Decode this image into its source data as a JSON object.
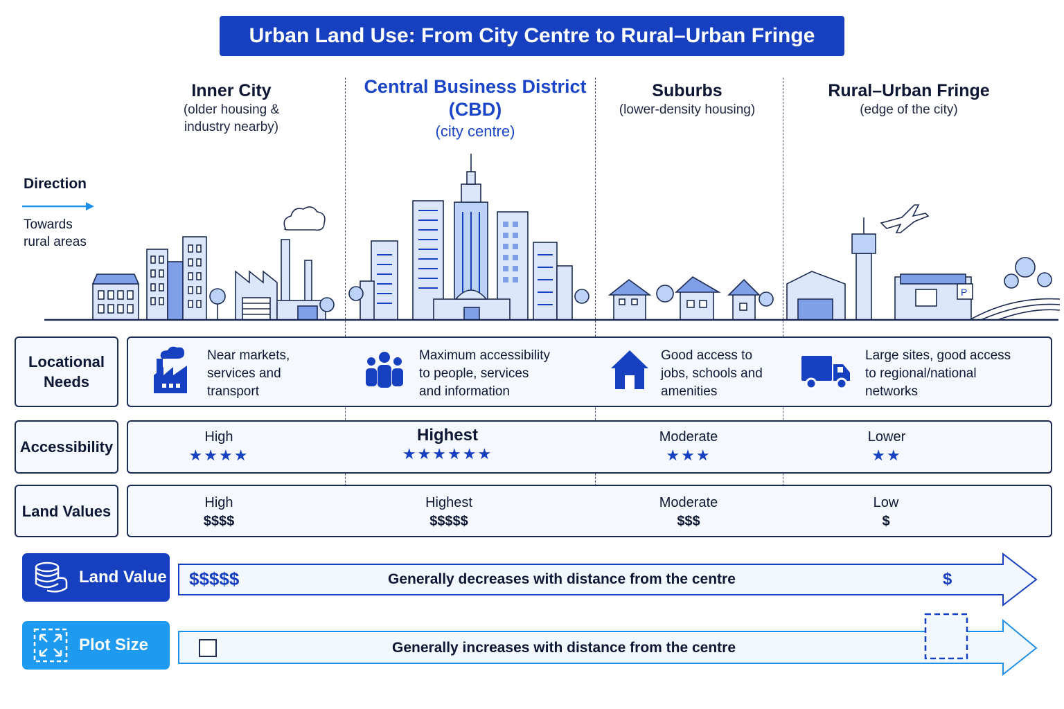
{
  "title": "Urban Land Use: From City Centre to Rural–Urban Fringe",
  "direction": {
    "label": "Direction",
    "note_line1": "Towards",
    "note_line2": "rural areas"
  },
  "zones": [
    {
      "name": "Inner City",
      "sub_line1": "(older housing &",
      "sub_line2": "industry nearby)"
    },
    {
      "name_line1": "Central Business District",
      "name_line2": "(CBD)",
      "sub": "(city centre)"
    },
    {
      "name": "Suburbs",
      "sub": "(lower-density housing)"
    },
    {
      "name": "Rural–Urban Fringe",
      "sub": "(edge of the city)"
    }
  ],
  "rows": {
    "locational_needs": {
      "label_line1": "Locational",
      "label_line2": "Needs",
      "cells": [
        {
          "icon": "factory-icon",
          "lines": [
            "Near markets,",
            "services and",
            "transport"
          ]
        },
        {
          "icon": "people-icon",
          "lines": [
            "Maximum accessibility",
            "to people, services",
            "and information"
          ]
        },
        {
          "icon": "house-icon",
          "lines": [
            "Good access to",
            "jobs, schools and",
            "amenities"
          ]
        },
        {
          "icon": "truck-icon",
          "lines": [
            "Large sites, good access",
            "to regional/national",
            "networks"
          ]
        }
      ]
    },
    "accessibility": {
      "label": "Accessibility",
      "cells": [
        {
          "level": "High",
          "stars": 4,
          "stars_text": "★★★★"
        },
        {
          "level": "Highest",
          "stars": 6,
          "stars_text": "★★★★★★"
        },
        {
          "level": "Moderate",
          "stars": 3,
          "stars_text": "★★★"
        },
        {
          "level": "Lower",
          "stars": 2,
          "stars_text": "★★"
        }
      ]
    },
    "land_values": {
      "label": "Land Values",
      "cells": [
        {
          "level": "High",
          "dollars": "$$$$"
        },
        {
          "level": "Highest",
          "dollars": "$$$$$"
        },
        {
          "level": "Moderate",
          "dollars": "$$$"
        },
        {
          "level": "Low",
          "dollars": "$"
        }
      ]
    }
  },
  "trends": {
    "land_value": {
      "label": "Land Value",
      "start": "$$$$$",
      "text": "Generally decreases with distance from the centre",
      "end": "$",
      "icon": "coins-icon"
    },
    "plot_size": {
      "label": "Plot Size",
      "text": "Generally increases with distance from the centre",
      "icon": "expand-icon"
    }
  },
  "colors": {
    "primary": "#1640c0",
    "accent": "#1e9af0",
    "light": "#dbe6fb",
    "outline": "#1c2b52"
  }
}
